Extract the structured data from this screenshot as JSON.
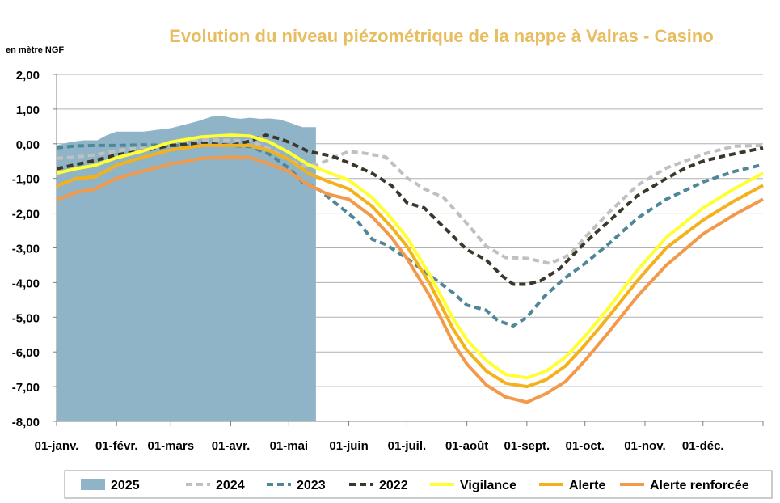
{
  "chart_data": {
    "type": "area",
    "title": "Evolution du niveau piézométrique de la nappe à Valras - Casino",
    "ylabel": "en mètre NGF",
    "xlabel": "",
    "x_domain": [
      0,
      365
    ],
    "ylim": [
      -8,
      2
    ],
    "y_ticks": [
      2,
      1,
      0,
      -1,
      -2,
      -3,
      -4,
      -5,
      -6,
      -7,
      -8
    ],
    "y_tick_labels": [
      "2,00",
      "1,00",
      "0,00",
      "-1,00",
      "-2,00",
      "-3,00",
      "-4,00",
      "-5,00",
      "-6,00",
      "-7,00",
      "-8,00"
    ],
    "x_ticks": [
      {
        "day": 0,
        "label": "01-janv."
      },
      {
        "day": 31,
        "label": "01-févr."
      },
      {
        "day": 59,
        "label": "01-mars"
      },
      {
        "day": 90,
        "label": "01-avr."
      },
      {
        "day": 120,
        "label": "01-mai"
      },
      {
        "day": 151,
        "label": "01-juin"
      },
      {
        "day": 181,
        "label": "01-juil."
      },
      {
        "day": 212,
        "label": "01-août"
      },
      {
        "day": 243,
        "label": "01-sept."
      },
      {
        "day": 273,
        "label": "01-oct."
      },
      {
        "day": 304,
        "label": "01-nov."
      },
      {
        "day": 334,
        "label": "01-déc."
      }
    ],
    "grid": "horizontal",
    "legend_position": "bottom",
    "series": [
      {
        "name": "2025",
        "kind": "area",
        "color": "#8fb4c8",
        "points": [
          [
            0,
            -0.05
          ],
          [
            7,
            0.05
          ],
          [
            14,
            0.1
          ],
          [
            21,
            0.1
          ],
          [
            26,
            0.25
          ],
          [
            31,
            0.35
          ],
          [
            38,
            0.35
          ],
          [
            45,
            0.35
          ],
          [
            52,
            0.4
          ],
          [
            59,
            0.45
          ],
          [
            66,
            0.55
          ],
          [
            73,
            0.65
          ],
          [
            80,
            0.78
          ],
          [
            86,
            0.8
          ],
          [
            90,
            0.75
          ],
          [
            95,
            0.72
          ],
          [
            100,
            0.75
          ],
          [
            105,
            0.72
          ],
          [
            110,
            0.73
          ],
          [
            115,
            0.7
          ],
          [
            120,
            0.62
          ],
          [
            127,
            0.48
          ],
          [
            134,
            0.48
          ]
        ]
      },
      {
        "name": "2024",
        "kind": "line",
        "color": "#c0c0c0",
        "dash": "8 5",
        "points": [
          [
            0,
            -0.42
          ],
          [
            10,
            -0.38
          ],
          [
            20,
            -0.32
          ],
          [
            31,
            -0.2
          ],
          [
            45,
            -0.1
          ],
          [
            59,
            -0.05
          ],
          [
            75,
            0.12
          ],
          [
            90,
            0.1
          ],
          [
            100,
            0.08
          ],
          [
            110,
            -0.15
          ],
          [
            120,
            -0.45
          ],
          [
            128,
            -0.65
          ],
          [
            135,
            -0.6
          ],
          [
            143,
            -0.4
          ],
          [
            151,
            -0.22
          ],
          [
            160,
            -0.28
          ],
          [
            170,
            -0.38
          ],
          [
            181,
            -0.98
          ],
          [
            190,
            -1.3
          ],
          [
            200,
            -1.55
          ],
          [
            212,
            -2.3
          ],
          [
            222,
            -2.95
          ],
          [
            232,
            -3.28
          ],
          [
            243,
            -3.3
          ],
          [
            255,
            -3.45
          ],
          [
            265,
            -3.2
          ],
          [
            273,
            -2.7
          ],
          [
            285,
            -2.0
          ],
          [
            300,
            -1.2
          ],
          [
            315,
            -0.7
          ],
          [
            334,
            -0.3
          ],
          [
            350,
            -0.07
          ],
          [
            365,
            -0.05
          ]
        ]
      },
      {
        "name": "2023",
        "kind": "line",
        "color": "#4e8797",
        "dash": "8 5",
        "points": [
          [
            0,
            -0.12
          ],
          [
            10,
            -0.06
          ],
          [
            20,
            -0.05
          ],
          [
            31,
            -0.05
          ],
          [
            45,
            -0.03
          ],
          [
            59,
            -0.05
          ],
          [
            75,
            -0.05
          ],
          [
            90,
            -0.05
          ],
          [
            100,
            -0.08
          ],
          [
            110,
            -0.3
          ],
          [
            120,
            -0.7
          ],
          [
            127,
            -1.1
          ],
          [
            135,
            -1.3
          ],
          [
            145,
            -1.75
          ],
          [
            155,
            -2.2
          ],
          [
            163,
            -2.75
          ],
          [
            170,
            -2.9
          ],
          [
            181,
            -3.3
          ],
          [
            193,
            -3.8
          ],
          [
            205,
            -4.3
          ],
          [
            212,
            -4.65
          ],
          [
            222,
            -4.8
          ],
          [
            228,
            -5.1
          ],
          [
            236,
            -5.25
          ],
          [
            243,
            -5.0
          ],
          [
            252,
            -4.4
          ],
          [
            262,
            -3.9
          ],
          [
            273,
            -3.45
          ],
          [
            285,
            -2.9
          ],
          [
            300,
            -2.15
          ],
          [
            315,
            -1.6
          ],
          [
            334,
            -1.1
          ],
          [
            350,
            -0.8
          ],
          [
            365,
            -0.6
          ]
        ]
      },
      {
        "name": "2022",
        "kind": "line",
        "color": "#3b372b",
        "dash": "8 5",
        "points": [
          [
            0,
            -0.72
          ],
          [
            10,
            -0.6
          ],
          [
            20,
            -0.48
          ],
          [
            31,
            -0.32
          ],
          [
            45,
            -0.2
          ],
          [
            59,
            -0.05
          ],
          [
            75,
            0.02
          ],
          [
            90,
            -0.05
          ],
          [
            100,
            0.08
          ],
          [
            108,
            0.25
          ],
          [
            115,
            0.15
          ],
          [
            120,
            0.05
          ],
          [
            130,
            -0.22
          ],
          [
            142,
            -0.35
          ],
          [
            151,
            -0.55
          ],
          [
            163,
            -0.85
          ],
          [
            173,
            -1.2
          ],
          [
            181,
            -1.7
          ],
          [
            190,
            -1.85
          ],
          [
            200,
            -2.4
          ],
          [
            212,
            -3.05
          ],
          [
            222,
            -3.35
          ],
          [
            230,
            -3.8
          ],
          [
            236,
            -4.05
          ],
          [
            243,
            -4.05
          ],
          [
            250,
            -3.95
          ],
          [
            260,
            -3.6
          ],
          [
            273,
            -2.85
          ],
          [
            285,
            -2.25
          ],
          [
            300,
            -1.5
          ],
          [
            315,
            -1.0
          ],
          [
            325,
            -0.7
          ],
          [
            334,
            -0.5
          ],
          [
            345,
            -0.35
          ],
          [
            365,
            -0.12
          ]
        ]
      },
      {
        "name": "Vigilance",
        "kind": "line",
        "color": "#ffff33",
        "dash": "",
        "points": [
          [
            0,
            -0.85
          ],
          [
            10,
            -0.72
          ],
          [
            20,
            -0.62
          ],
          [
            31,
            -0.4
          ],
          [
            45,
            -0.2
          ],
          [
            59,
            0.05
          ],
          [
            75,
            0.2
          ],
          [
            90,
            0.25
          ],
          [
            100,
            0.22
          ],
          [
            110,
            0.05
          ],
          [
            120,
            -0.25
          ],
          [
            130,
            -0.6
          ],
          [
            140,
            -0.82
          ],
          [
            151,
            -1.05
          ],
          [
            163,
            -1.55
          ],
          [
            173,
            -2.15
          ],
          [
            181,
            -2.7
          ],
          [
            193,
            -3.8
          ],
          [
            205,
            -5.05
          ],
          [
            212,
            -5.65
          ],
          [
            222,
            -6.25
          ],
          [
            232,
            -6.65
          ],
          [
            243,
            -6.75
          ],
          [
            253,
            -6.55
          ],
          [
            263,
            -6.15
          ],
          [
            273,
            -5.55
          ],
          [
            285,
            -4.75
          ],
          [
            300,
            -3.65
          ],
          [
            315,
            -2.7
          ],
          [
            334,
            -1.85
          ],
          [
            350,
            -1.3
          ],
          [
            365,
            -0.85
          ]
        ]
      },
      {
        "name": "Alerte",
        "kind": "line",
        "color": "#f5b11b",
        "dash": "",
        "points": [
          [
            0,
            -1.22
          ],
          [
            10,
            -1.0
          ],
          [
            20,
            -0.95
          ],
          [
            31,
            -0.62
          ],
          [
            45,
            -0.38
          ],
          [
            59,
            -0.18
          ],
          [
            75,
            -0.05
          ],
          [
            90,
            -0.05
          ],
          [
            100,
            -0.05
          ],
          [
            110,
            -0.2
          ],
          [
            120,
            -0.45
          ],
          [
            130,
            -0.85
          ],
          [
            140,
            -1.08
          ],
          [
            151,
            -1.3
          ],
          [
            163,
            -1.8
          ],
          [
            173,
            -2.4
          ],
          [
            181,
            -2.95
          ],
          [
            193,
            -4.05
          ],
          [
            205,
            -5.35
          ],
          [
            212,
            -5.95
          ],
          [
            222,
            -6.55
          ],
          [
            232,
            -6.9
          ],
          [
            243,
            -7.0
          ],
          [
            253,
            -6.8
          ],
          [
            263,
            -6.4
          ],
          [
            273,
            -5.8
          ],
          [
            285,
            -5.0
          ],
          [
            300,
            -3.95
          ],
          [
            315,
            -3.0
          ],
          [
            334,
            -2.2
          ],
          [
            350,
            -1.65
          ],
          [
            365,
            -1.2
          ]
        ]
      },
      {
        "name": "Alerte renforcée",
        "kind": "line",
        "color": "#f39a4a",
        "dash": "",
        "points": [
          [
            0,
            -1.62
          ],
          [
            10,
            -1.4
          ],
          [
            20,
            -1.3
          ],
          [
            31,
            -1.0
          ],
          [
            45,
            -0.78
          ],
          [
            59,
            -0.58
          ],
          [
            75,
            -0.42
          ],
          [
            90,
            -0.38
          ],
          [
            100,
            -0.4
          ],
          [
            110,
            -0.58
          ],
          [
            120,
            -0.8
          ],
          [
            130,
            -1.18
          ],
          [
            140,
            -1.45
          ],
          [
            151,
            -1.6
          ],
          [
            163,
            -2.1
          ],
          [
            173,
            -2.7
          ],
          [
            181,
            -3.3
          ],
          [
            193,
            -4.4
          ],
          [
            205,
            -5.75
          ],
          [
            212,
            -6.35
          ],
          [
            222,
            -6.95
          ],
          [
            232,
            -7.3
          ],
          [
            243,
            -7.45
          ],
          [
            253,
            -7.2
          ],
          [
            263,
            -6.85
          ],
          [
            273,
            -6.25
          ],
          [
            285,
            -5.45
          ],
          [
            300,
            -4.4
          ],
          [
            315,
            -3.5
          ],
          [
            334,
            -2.6
          ],
          [
            350,
            -2.05
          ],
          [
            365,
            -1.6
          ]
        ]
      }
    ]
  }
}
